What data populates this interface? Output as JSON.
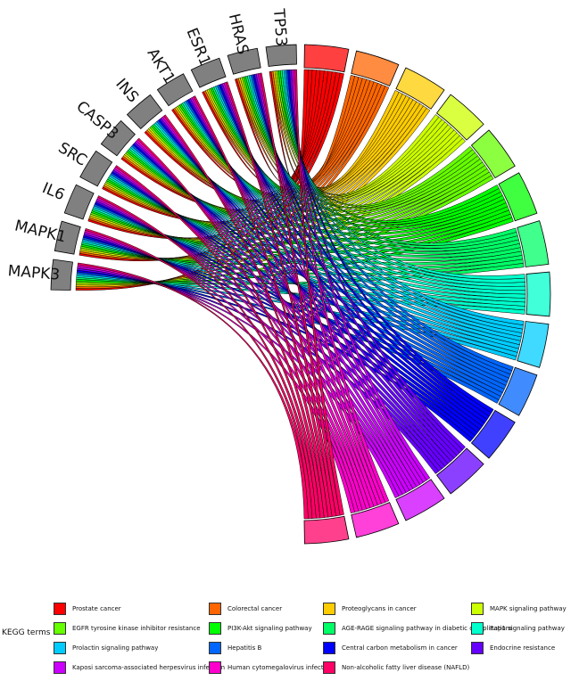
{
  "chart_data": {
    "type": "chord",
    "genes": [
      "MAPK3",
      "MAPK1",
      "IL6",
      "SRC",
      "CASP3",
      "INS",
      "AKT1",
      "ESR1",
      "HRAS",
      "TP53"
    ],
    "gene_color": "#808080",
    "legend_title": "KEGG terms",
    "terms": [
      {
        "name": "Prostate cancer",
        "color": "#FF0000"
      },
      {
        "name": "Colorectal cancer",
        "color": "#FF6600"
      },
      {
        "name": "Proteoglycans in cancer",
        "color": "#FFCC00"
      },
      {
        "name": "MAPK signaling pathway",
        "color": "#CCFF00"
      },
      {
        "name": "EGFR tyrosine kinase inhibitor resistance",
        "color": "#66FF00"
      },
      {
        "name": "PI3K-Akt signaling pathway",
        "color": "#00FF00"
      },
      {
        "name": "AGE-RAGE signaling pathway in diabetic complications",
        "color": "#00FF66"
      },
      {
        "name": "Rap1 signaling pathway",
        "color": "#00FFCC"
      },
      {
        "name": "Prolactin signaling pathway",
        "color": "#00CCFF"
      },
      {
        "name": "Hepatitis B",
        "color": "#0066FF"
      },
      {
        "name": "Central carbon metabolism in cancer",
        "color": "#0000FF"
      },
      {
        "name": "Endocrine resistance",
        "color": "#6600FF"
      },
      {
        "name": "Kaposi sarcoma-associated herpesvirus infection",
        "color": "#CC00FF"
      },
      {
        "name": "Human cytomegalovirus infection",
        "color": "#FF00CC"
      },
      {
        "name": "Non-alcoholic fatty liver disease (NAFLD)",
        "color": "#FF0066"
      }
    ]
  }
}
